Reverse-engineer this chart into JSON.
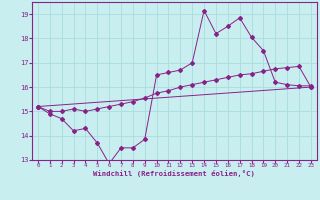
{
  "xlabel": "Windchill (Refroidissement éolien,°C)",
  "bg_color": "#c8eef0",
  "grid_color": "#aadddd",
  "line_color": "#882288",
  "xlim": [
    -0.5,
    23.5
  ],
  "ylim": [
    13.0,
    19.5
  ],
  "yticks": [
    13,
    14,
    15,
    16,
    17,
    18,
    19
  ],
  "xticks": [
    0,
    1,
    2,
    3,
    4,
    5,
    6,
    7,
    8,
    9,
    10,
    11,
    12,
    13,
    14,
    15,
    16,
    17,
    18,
    19,
    20,
    21,
    22,
    23
  ],
  "line1_x": [
    0,
    1,
    2,
    3,
    4,
    5,
    6,
    7,
    8,
    9,
    10,
    11,
    12,
    13,
    14,
    15,
    16,
    17,
    18,
    19,
    20,
    21,
    22,
    23
  ],
  "line1_y": [
    15.2,
    14.9,
    14.7,
    14.2,
    14.3,
    13.7,
    12.85,
    13.5,
    13.5,
    13.85,
    16.5,
    16.6,
    16.7,
    17.0,
    19.15,
    18.2,
    18.5,
    18.85,
    18.05,
    17.5,
    16.2,
    16.1,
    16.05,
    16.05
  ],
  "line2_x": [
    0,
    1,
    2,
    3,
    4,
    5,
    6,
    7,
    8,
    9,
    10,
    11,
    12,
    13,
    14,
    15,
    16,
    17,
    18,
    19,
    20,
    21,
    22,
    23
  ],
  "line2_y": [
    15.2,
    15.0,
    15.0,
    15.1,
    15.0,
    15.1,
    15.2,
    15.3,
    15.4,
    15.55,
    15.75,
    15.85,
    16.0,
    16.1,
    16.2,
    16.3,
    16.4,
    16.5,
    16.55,
    16.65,
    16.75,
    16.8,
    16.85,
    16.0
  ],
  "line3_x": [
    0,
    23
  ],
  "line3_y": [
    15.2,
    16.0
  ]
}
